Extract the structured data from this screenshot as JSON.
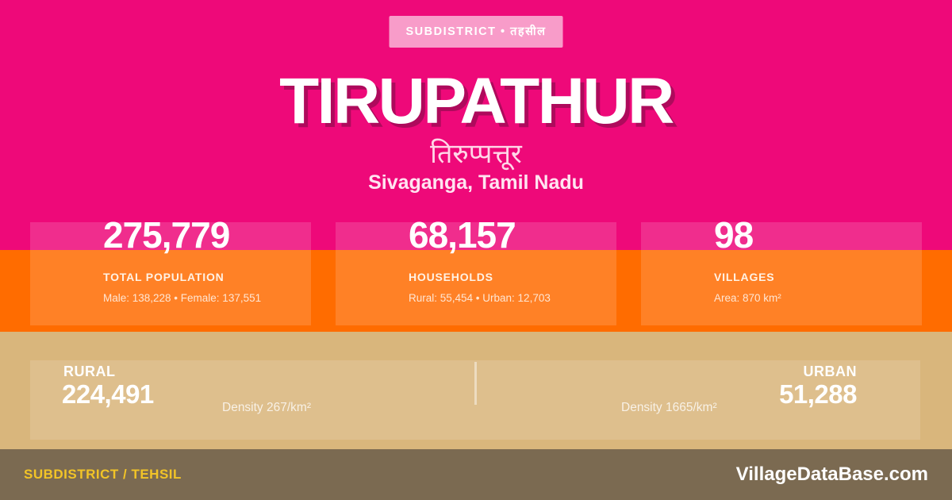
{
  "badge": {
    "label": "SUBDISTRICT • तहसील"
  },
  "header": {
    "title": "TIRUPATHUR",
    "native_name": "तिरुप्पत्तूर",
    "location": "Sivaganga, Tamil Nadu"
  },
  "stats": [
    {
      "value": "275,779",
      "label": "TOTAL POPULATION",
      "detail": "Male: 138,228 • Female: 137,551"
    },
    {
      "value": "68,157",
      "label": "HOUSEHOLDS",
      "detail": "Rural: 55,454 • Urban: 12,703"
    },
    {
      "value": "98",
      "label": "VILLAGES",
      "detail": "Area: 870 km²"
    }
  ],
  "breakdown": {
    "rural": {
      "label": "RURAL",
      "value": "224,491",
      "density": "Density 267/km²"
    },
    "urban": {
      "label": "URBAN",
      "value": "51,288",
      "density": "Density 1665/km²"
    }
  },
  "footer": {
    "left": "SUBDISTRICT / TEHSIL",
    "right": "VillageDataBase.com"
  },
  "colors": {
    "pink": "#EE0979",
    "pink-shadow": "#AE0A5C",
    "orange": "#FF6C00",
    "tan": "#D9B67C",
    "footer-bg": "#7B6A51",
    "accent-yellow": "#F2C427"
  }
}
